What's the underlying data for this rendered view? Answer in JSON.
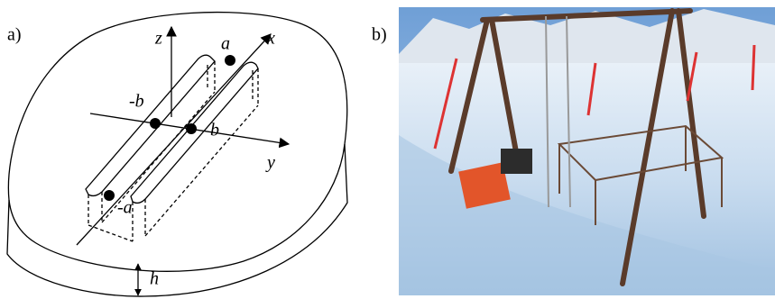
{
  "panel_a": {
    "label": "a)",
    "axes": {
      "z": "z",
      "x": "x",
      "y": "y"
    },
    "points": {
      "a": "a",
      "minus_b": "-b",
      "b": "b",
      "minus_a": "-a"
    },
    "thickness": "h"
  },
  "panel_b": {
    "label": "b)"
  }
}
